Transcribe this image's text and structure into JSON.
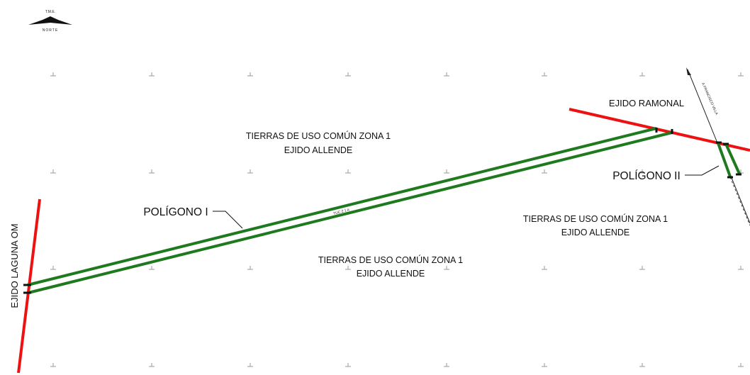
{
  "north_arrow": {
    "top_text": "T.M.E.",
    "bottom_text": "NORTE"
  },
  "labels": {
    "zona_top_line1": "TIERRAS DE USO COMÚN ZONA 1",
    "zona_top_line2": "EJIDO ALLENDE",
    "zona_bottom_line1": "TIERRAS DE USO COMÚN ZONA 1",
    "zona_bottom_line2": "EJIDO ALLENDE",
    "zona_right_line1": "TIERRAS DE USO COMÚN ZONA 1",
    "zona_right_line2": "EJIDO ALLENDE",
    "ejido_ramonal": "EJIDO RAMONAL",
    "ejido_laguna": "EJIDO LAGUNA OM",
    "poligono_1": "POLÍGONO I",
    "poligono_2": "POLÍGONO II",
    "road_francisco_villa": "A FRANCISCO VILLA",
    "strip_text": "TUC Z 1 A"
  },
  "colors": {
    "boundary_red": "#ee1111",
    "strip_green": "#1f7a1f",
    "grid_cross": "#9a9a9a",
    "text": "#111111"
  }
}
